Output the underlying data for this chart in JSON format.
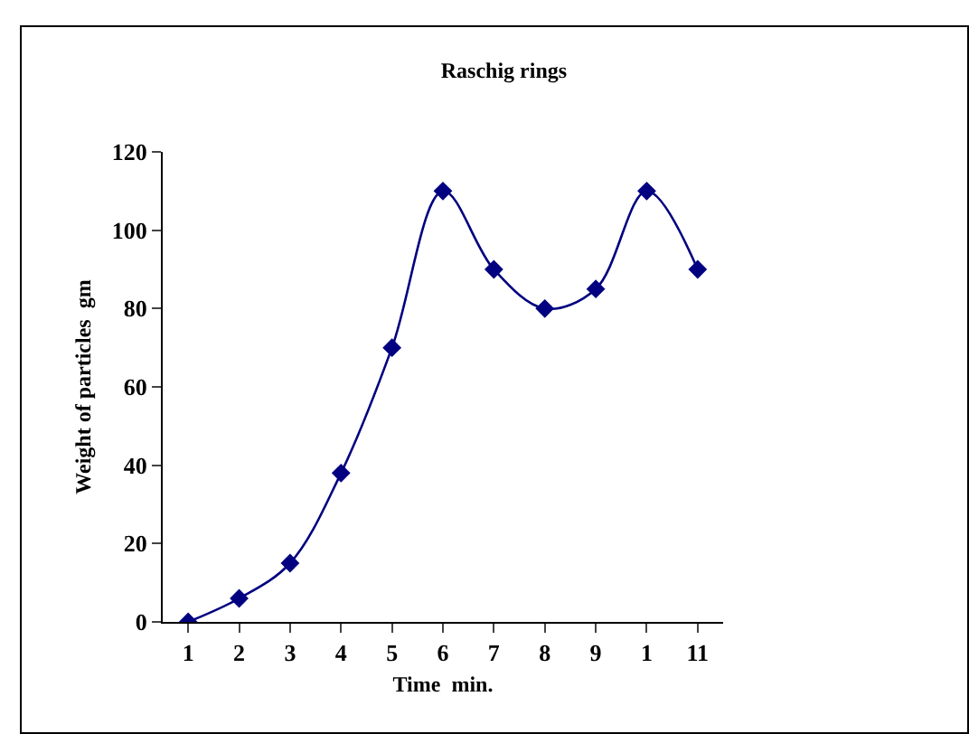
{
  "chart_data": {
    "type": "line",
    "title": "Raschig rings",
    "xlabel": "Time  min.",
    "ylabel": "Weight of particles  gm",
    "categories": [
      "1",
      "2",
      "3",
      "4",
      "5",
      "6",
      "7",
      "8",
      "9",
      "1",
      "11"
    ],
    "series": [
      {
        "color": "#000080",
        "values": [
          0,
          6,
          15,
          38,
          70,
          110,
          90,
          80,
          85,
          110,
          90
        ]
      }
    ],
    "ylim": [
      0,
      120
    ],
    "yticks": [
      0,
      20,
      40,
      60,
      80,
      100,
      120
    ],
    "grid": false,
    "marker": "diamond",
    "line_style": "solid"
  }
}
